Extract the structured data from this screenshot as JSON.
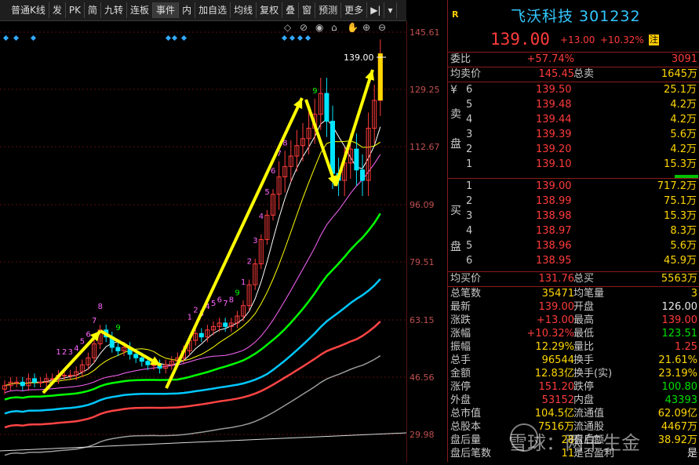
{
  "toolbar": {
    "items": [
      "普通K线",
      "发",
      "PK",
      "简",
      "九转",
      "连板",
      "事件",
      "内",
      "加自选",
      "均线",
      "复权",
      "叠",
      "窗",
      "预测",
      "更多"
    ]
  },
  "chart": {
    "current_price_label": "139.00",
    "price_axis": [
      "145.61",
      "129.25",
      "112.67",
      "96.09",
      "79.51",
      "63.15",
      "46.56",
      "29.98"
    ]
  },
  "quote": {
    "badge": "R",
    "title": "飞沃科技 301232",
    "price": "139.00",
    "change": "+13.00",
    "change_pct": "+10.32%",
    "flag": "注",
    "weibi_label": "委比",
    "weibi_value": "+57.74%",
    "weibi_diff": "3091",
    "avg_sell_label": "均卖价",
    "avg_sell_value": "145.45",
    "total_sell_label": "总卖",
    "total_sell_value": "1645万",
    "sell_side_label": [
      "¥",
      "卖",
      "盘"
    ],
    "sell": [
      {
        "lvl": "6",
        "price": "139.50",
        "vol": "25.1万"
      },
      {
        "lvl": "5",
        "price": "139.48",
        "vol": "4.2万"
      },
      {
        "lvl": "4",
        "price": "139.44",
        "vol": "4.2万"
      },
      {
        "lvl": "3",
        "price": "139.39",
        "vol": "5.6万"
      },
      {
        "lvl": "2",
        "price": "139.20",
        "vol": "4.2万"
      },
      {
        "lvl": "1",
        "price": "139.10",
        "vol": "15.3万"
      }
    ],
    "buy_side_label": [
      "买",
      "盘"
    ],
    "buy": [
      {
        "lvl": "1",
        "price": "139.00",
        "vol": "717.2万"
      },
      {
        "lvl": "2",
        "price": "138.99",
        "vol": "75.1万"
      },
      {
        "lvl": "3",
        "price": "138.98",
        "vol": "15.3万"
      },
      {
        "lvl": "4",
        "price": "138.97",
        "vol": "8.3万"
      },
      {
        "lvl": "5",
        "price": "138.96",
        "vol": "5.6万"
      },
      {
        "lvl": "6",
        "price": "138.95",
        "vol": "45.9万"
      }
    ],
    "avg_buy_label": "均买价",
    "avg_buy_value": "131.76",
    "total_buy_label": "总买",
    "total_buy_value": "5563万",
    "stats": [
      {
        "l": "总笔数",
        "v1": "35471",
        "c1": "yellow",
        "l2": "均笔量",
        "v2": "3",
        "c2": "yellow"
      },
      {
        "l": "最新",
        "v1": "139.00",
        "c1": "red",
        "l2": "开盘",
        "v2": "126.00",
        "c2": "white"
      },
      {
        "l": "涨跌",
        "v1": "+13.00",
        "c1": "red",
        "l2": "最高",
        "v2": "139.00",
        "c2": "red"
      },
      {
        "l": "涨幅",
        "v1": "+10.32%",
        "c1": "red",
        "l2": "最低",
        "v2": "123.51",
        "c2": "green"
      },
      {
        "l": "振幅",
        "v1": "12.29%",
        "c1": "yellow",
        "l2": "量比",
        "v2": "1.25",
        "c2": "red"
      },
      {
        "l": "总手",
        "v1": "96544",
        "c1": "yellow",
        "l2": "换手",
        "v2": "21.61%",
        "c2": "yellow"
      },
      {
        "l": "金额",
        "v1": "12.83亿",
        "c1": "yellow",
        "l2": "换手(实)",
        "v2": "23.19%",
        "c2": "yellow"
      },
      {
        "l": "涨停",
        "v1": "151.20",
        "c1": "red",
        "l2": "跌停",
        "v2": "100.80",
        "c2": "green"
      },
      {
        "l": "外盘",
        "v1": "53152",
        "c1": "red",
        "l2": "内盘",
        "v2": "43393",
        "c2": "green"
      },
      {
        "l": "总市值",
        "v1": "104.5亿",
        "c1": "yellow",
        "l2": "流通值",
        "v2": "62.09亿",
        "c2": "yellow"
      },
      {
        "l": "总股本",
        "v1": "7516万",
        "c1": "yellow",
        "l2": "流通股",
        "v2": "4467万",
        "c2": "yellow"
      },
      {
        "l": "盘后量",
        "v1": "28",
        "c1": "yellow",
        "l2": "盘后额",
        "v2": "38.92万",
        "c2": "yellow"
      },
      {
        "l": "盘后笔数",
        "v1": "11",
        "c1": "yellow",
        "l2": "是否盈利",
        "v2": "是",
        "c2": "white"
      }
    ]
  },
  "watermark": "雪球：两午生金",
  "colors": {
    "up": "#ff3b3b",
    "down": "#00e5ff",
    "ma5": "#ffffff",
    "ma10": "#ffff00",
    "ma20": "#ff66ff",
    "ma30": "#00ff00",
    "ma60": "#00c8ff",
    "ma120": "#ff4444",
    "ma250": "#9a9a9a"
  }
}
